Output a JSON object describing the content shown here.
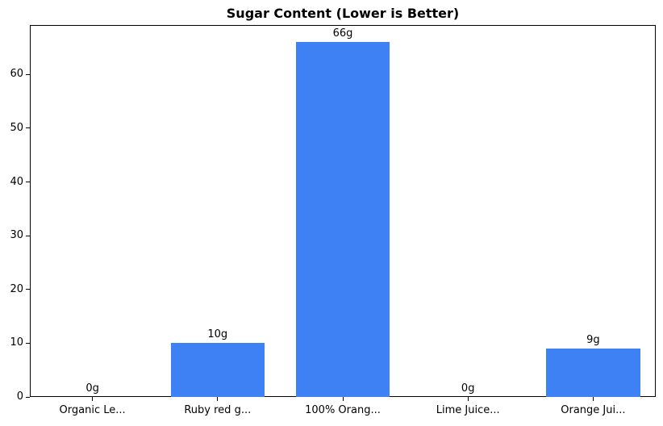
{
  "chart_data": {
    "type": "bar",
    "title": "Sugar Content (Lower is Better)",
    "categories": [
      "Organic Le...",
      "Ruby red g...",
      "100% Orang...",
      "Lime Juice...",
      "Orange Jui..."
    ],
    "values": [
      0,
      10,
      66,
      0,
      9
    ],
    "bar_labels": [
      "0g",
      "10g",
      "66g",
      "0g",
      "9g"
    ],
    "bar_color": "#3e81f4",
    "axis_color": "#000000",
    "background_color": "#ffffff",
    "xlabel": "",
    "ylabel": "",
    "ylim": [
      0,
      69.2
    ],
    "yticks": [
      0,
      10,
      20,
      30,
      40,
      50,
      60
    ],
    "bar_width_fraction": 0.75,
    "grid": false,
    "legend": "none"
  }
}
